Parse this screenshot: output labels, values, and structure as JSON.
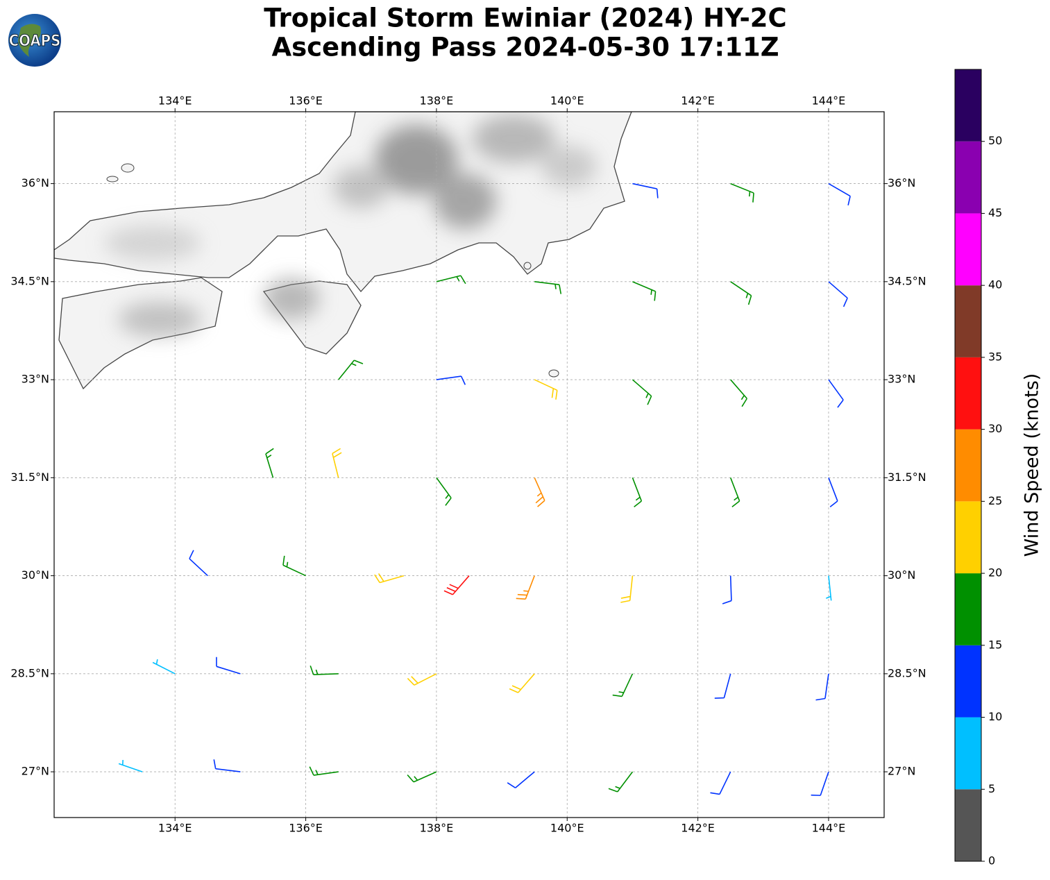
{
  "chart_data": {
    "type": "barbs",
    "title": "Tropical Storm Ewiniar (2024) HY-2C",
    "subtitle": "Ascending Pass 2024-05-30 17:11Z",
    "logo": "COAPS",
    "xlim": [
      132.15,
      144.85
    ],
    "ylim": [
      26.3,
      37.1
    ],
    "xticks": [
      {
        "value": 134,
        "label": "134°E"
      },
      {
        "value": 136,
        "label": "136°E"
      },
      {
        "value": 138,
        "label": "138°E"
      },
      {
        "value": 140,
        "label": "140°E"
      },
      {
        "value": 142,
        "label": "142°E"
      },
      {
        "value": 144,
        "label": "144°E"
      }
    ],
    "yticks": [
      {
        "value": 27,
        "label": "27°N"
      },
      {
        "value": 28.5,
        "label": "28.5°N"
      },
      {
        "value": 30,
        "label": "30°N"
      },
      {
        "value": 31.5,
        "label": "31.5°N"
      },
      {
        "value": 33,
        "label": "33°N"
      },
      {
        "value": 34.5,
        "label": "34.5°N"
      },
      {
        "value": 36,
        "label": "36°N"
      }
    ],
    "grid": true,
    "barbs": {
      "lon": [
        141,
        142.5,
        144,
        138,
        139.5,
        141,
        142.5,
        144,
        136.5,
        138,
        139.5,
        141,
        142.5,
        144,
        135.5,
        136.5,
        138,
        139.5,
        141,
        142.5,
        144,
        134.5,
        136,
        137.5,
        138.5,
        139.5,
        141,
        142.5,
        144,
        134,
        135,
        136.5,
        138,
        139.5,
        141,
        142.5,
        144,
        133.5,
        135,
        136.5,
        138,
        139.5,
        141,
        142.5,
        144
      ],
      "lat": [
        36,
        36,
        36,
        34.5,
        34.5,
        34.5,
        34.5,
        34.5,
        33,
        33,
        33,
        33,
        33,
        33,
        31.5,
        31.5,
        31.5,
        31.5,
        31.5,
        31.5,
        31.5,
        30,
        30,
        30,
        30,
        30,
        30,
        30,
        30,
        28.5,
        28.5,
        28.5,
        28.5,
        28.5,
        28.5,
        28.5,
        28.5,
        27,
        27,
        27,
        27,
        27,
        27,
        27,
        27
      ],
      "speed": [
        12,
        17,
        13,
        17,
        18,
        17,
        16,
        13,
        17,
        12,
        22,
        19,
        17,
        13,
        16,
        21,
        15,
        26,
        19,
        16,
        12,
        12,
        17,
        23,
        32,
        27,
        22,
        13,
        9,
        9,
        12,
        18,
        22,
        23,
        18,
        13,
        12,
        8,
        11,
        16,
        18,
        14,
        16,
        12,
        11
      ],
      "direction": [
        102,
        112,
        120,
        76,
        97,
        113,
        124,
        131,
        39,
        82,
        115,
        131,
        139,
        144,
        343,
        346,
        144,
        156,
        159,
        159,
        159,
        313,
        295,
        254,
        221,
        201,
        186,
        178,
        174,
        297,
        287,
        268,
        243,
        221,
        205,
        195,
        188,
        289,
        277,
        262,
        246,
        230,
        217,
        206,
        199
      ]
    },
    "colorbar": {
      "label": "Wind Speed (knots)",
      "clim": [
        0,
        55
      ],
      "bounds": [
        0,
        5,
        10,
        15,
        20,
        25,
        30,
        35,
        40,
        45,
        50,
        55
      ],
      "colors": [
        "#555555",
        "#00bfff",
        "#0033ff",
        "#009000",
        "#ffd000",
        "#ff8c00",
        "#ff1010",
        "#803a28",
        "#ff00ff",
        "#8a00b0",
        "#2a0060"
      ],
      "ticks": [
        0,
        5,
        10,
        15,
        20,
        25,
        30,
        35,
        40,
        45,
        50
      ]
    }
  }
}
